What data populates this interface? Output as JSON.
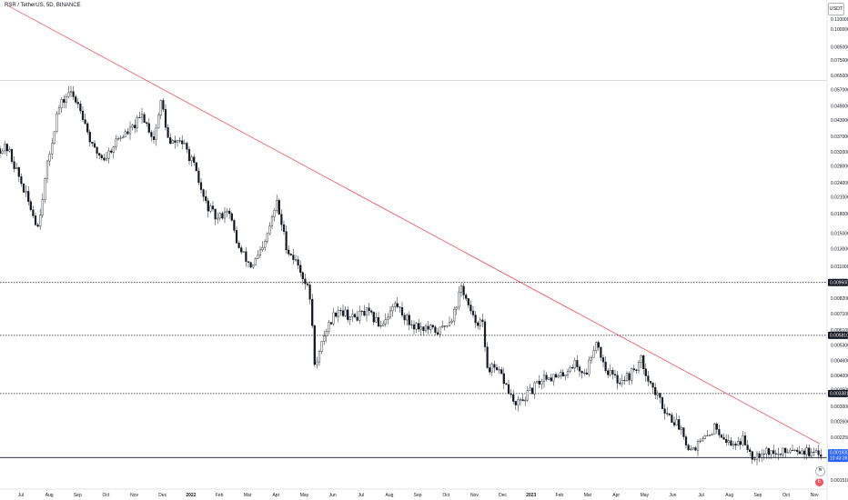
{
  "header": {
    "title": "RSR / TetherUS, 5D, BINANCE",
    "scale_badge": "USDT"
  },
  "colors": {
    "candle": "#131722",
    "trendline": "#f23645",
    "level_line": "#131722",
    "grid": "#f0f3fa",
    "last_price_bg": "#2962ff",
    "level_label_bg": "#131722"
  },
  "icons": {
    "flag": "flag-icon",
    "earnings": "earnings-icon"
  },
  "chart_data": {
    "type": "candlestick",
    "y_scale": "log",
    "ylim": [
      0.00145,
      0.125
    ],
    "y_ticks": [
      "0.110000",
      "0.100000",
      "0.085000",
      "0.075000",
      "0.065000",
      "0.057000",
      "0.049000",
      "0.043000",
      "0.037000",
      "0.032000",
      "0.028000",
      "0.024000",
      "0.021000",
      "0.018000",
      "0.015000",
      "0.013000",
      "0.011000",
      "0.009500",
      "0.008200",
      "0.007100",
      "0.006100",
      "0.005300",
      "0.004600",
      "0.004000",
      "0.003500",
      "0.003000",
      "0.002600",
      "0.002250",
      "0.001510"
    ],
    "x_labels": [
      {
        "label": "Jul",
        "bold": false
      },
      {
        "label": "Aug",
        "bold": false
      },
      {
        "label": "Sep",
        "bold": false
      },
      {
        "label": "Oct",
        "bold": false
      },
      {
        "label": "Nov",
        "bold": false
      },
      {
        "label": "Dec",
        "bold": false
      },
      {
        "label": "2022",
        "bold": true
      },
      {
        "label": "Feb",
        "bold": false
      },
      {
        "label": "Mar",
        "bold": false
      },
      {
        "label": "Apr",
        "bold": false
      },
      {
        "label": "May",
        "bold": false
      },
      {
        "label": "Jun",
        "bold": false
      },
      {
        "label": "Jul",
        "bold": false
      },
      {
        "label": "Aug",
        "bold": false
      },
      {
        "label": "Sep",
        "bold": false
      },
      {
        "label": "Oct",
        "bold": false
      },
      {
        "label": "Nov",
        "bold": false
      },
      {
        "label": "Dec",
        "bold": false
      },
      {
        "label": "2023",
        "bold": true
      },
      {
        "label": "Feb",
        "bold": false
      },
      {
        "label": "Mar",
        "bold": false
      },
      {
        "label": "Apr",
        "bold": false
      },
      {
        "label": "May",
        "bold": false
      },
      {
        "label": "Jun",
        "bold": false
      },
      {
        "label": "Jul",
        "bold": false
      },
      {
        "label": "Aug",
        "bold": false
      },
      {
        "label": "Sep",
        "bold": false
      },
      {
        "label": "Oct",
        "bold": false
      },
      {
        "label": "Nov",
        "bold": false
      }
    ],
    "horizontal_levels": [
      {
        "value": 0.0621,
        "style": "solid-thin",
        "labeled": false
      },
      {
        "value": 0.0095,
        "label": "0.009500",
        "style": "dotted"
      },
      {
        "value": 0.00581,
        "label": "0.005810",
        "style": "dotted"
      },
      {
        "value": 0.003381,
        "label": "0.003381",
        "style": "dotted"
      },
      {
        "value": 0.001864,
        "label": "0.001864",
        "style": "solid"
      }
    ],
    "trendline": {
      "from": [
        "2021-06-20",
        0.125
      ],
      "to": [
        "2023-10-28",
        0.00212
      ]
    },
    "last_price": {
      "value": "0.001930",
      "countdown": "10:43:39"
    },
    "close_path": [
      [
        "2021-06-20",
        0.033
      ],
      [
        "2021-07-01",
        0.026
      ],
      [
        "2021-07-10",
        0.021
      ],
      [
        "2021-07-22",
        0.016
      ],
      [
        "2021-08-01",
        0.028
      ],
      [
        "2021-08-12",
        0.047
      ],
      [
        "2021-08-24",
        0.056
      ],
      [
        "2021-09-05",
        0.049
      ],
      [
        "2021-09-18",
        0.033
      ],
      [
        "2021-10-01",
        0.03
      ],
      [
        "2021-10-14",
        0.036
      ],
      [
        "2021-10-28",
        0.039
      ],
      [
        "2021-11-10",
        0.045
      ],
      [
        "2021-11-22",
        0.036
      ],
      [
        "2021-11-30",
        0.052
      ],
      [
        "2021-12-08",
        0.034
      ],
      [
        "2021-12-20",
        0.036
      ],
      [
        "2022-01-02",
        0.029
      ],
      [
        "2022-01-15",
        0.02
      ],
      [
        "2022-01-28",
        0.017
      ],
      [
        "2022-02-08",
        0.019
      ],
      [
        "2022-02-20",
        0.013
      ],
      [
        "2022-03-05",
        0.011
      ],
      [
        "2022-03-18",
        0.013
      ],
      [
        "2022-04-01",
        0.02
      ],
      [
        "2022-04-12",
        0.013
      ],
      [
        "2022-04-25",
        0.011
      ],
      [
        "2022-05-06",
        0.0085
      ],
      [
        "2022-05-12",
        0.0042
      ],
      [
        "2022-05-22",
        0.006
      ],
      [
        "2022-06-05",
        0.0075
      ],
      [
        "2022-06-20",
        0.0068
      ],
      [
        "2022-07-05",
        0.0072
      ],
      [
        "2022-07-20",
        0.0064
      ],
      [
        "2022-08-05",
        0.0078
      ],
      [
        "2022-08-20",
        0.0065
      ],
      [
        "2022-09-05",
        0.0062
      ],
      [
        "2022-09-20",
        0.006
      ],
      [
        "2022-10-05",
        0.007
      ],
      [
        "2022-10-14",
        0.0092
      ],
      [
        "2022-10-25",
        0.0068
      ],
      [
        "2022-11-05",
        0.0065
      ],
      [
        "2022-11-09",
        0.0044
      ],
      [
        "2022-11-25",
        0.004
      ],
      [
        "2022-12-10",
        0.003
      ],
      [
        "2022-12-28",
        0.0035
      ],
      [
        "2023-01-10",
        0.004
      ],
      [
        "2023-01-25",
        0.0039
      ],
      [
        "2023-02-10",
        0.0045
      ],
      [
        "2023-02-22",
        0.004
      ],
      [
        "2023-03-05",
        0.0056
      ],
      [
        "2023-03-15",
        0.0043
      ],
      [
        "2023-03-28",
        0.0038
      ],
      [
        "2023-04-10",
        0.004
      ],
      [
        "2023-04-22",
        0.0046
      ],
      [
        "2023-05-05",
        0.0035
      ],
      [
        "2023-05-20",
        0.0028
      ],
      [
        "2023-06-05",
        0.0024
      ],
      [
        "2023-06-12",
        0.002
      ],
      [
        "2023-06-28",
        0.0022
      ],
      [
        "2023-07-10",
        0.0025
      ],
      [
        "2023-07-25",
        0.0021
      ],
      [
        "2023-08-08",
        0.0022
      ],
      [
        "2023-08-18",
        0.0019
      ],
      [
        "2023-09-01",
        0.002
      ],
      [
        "2023-09-15",
        0.0019
      ],
      [
        "2023-09-28",
        0.00205
      ],
      [
        "2023-10-10",
        0.002
      ],
      [
        "2023-10-22",
        0.0019
      ],
      [
        "2023-10-30",
        0.00193
      ]
    ]
  }
}
